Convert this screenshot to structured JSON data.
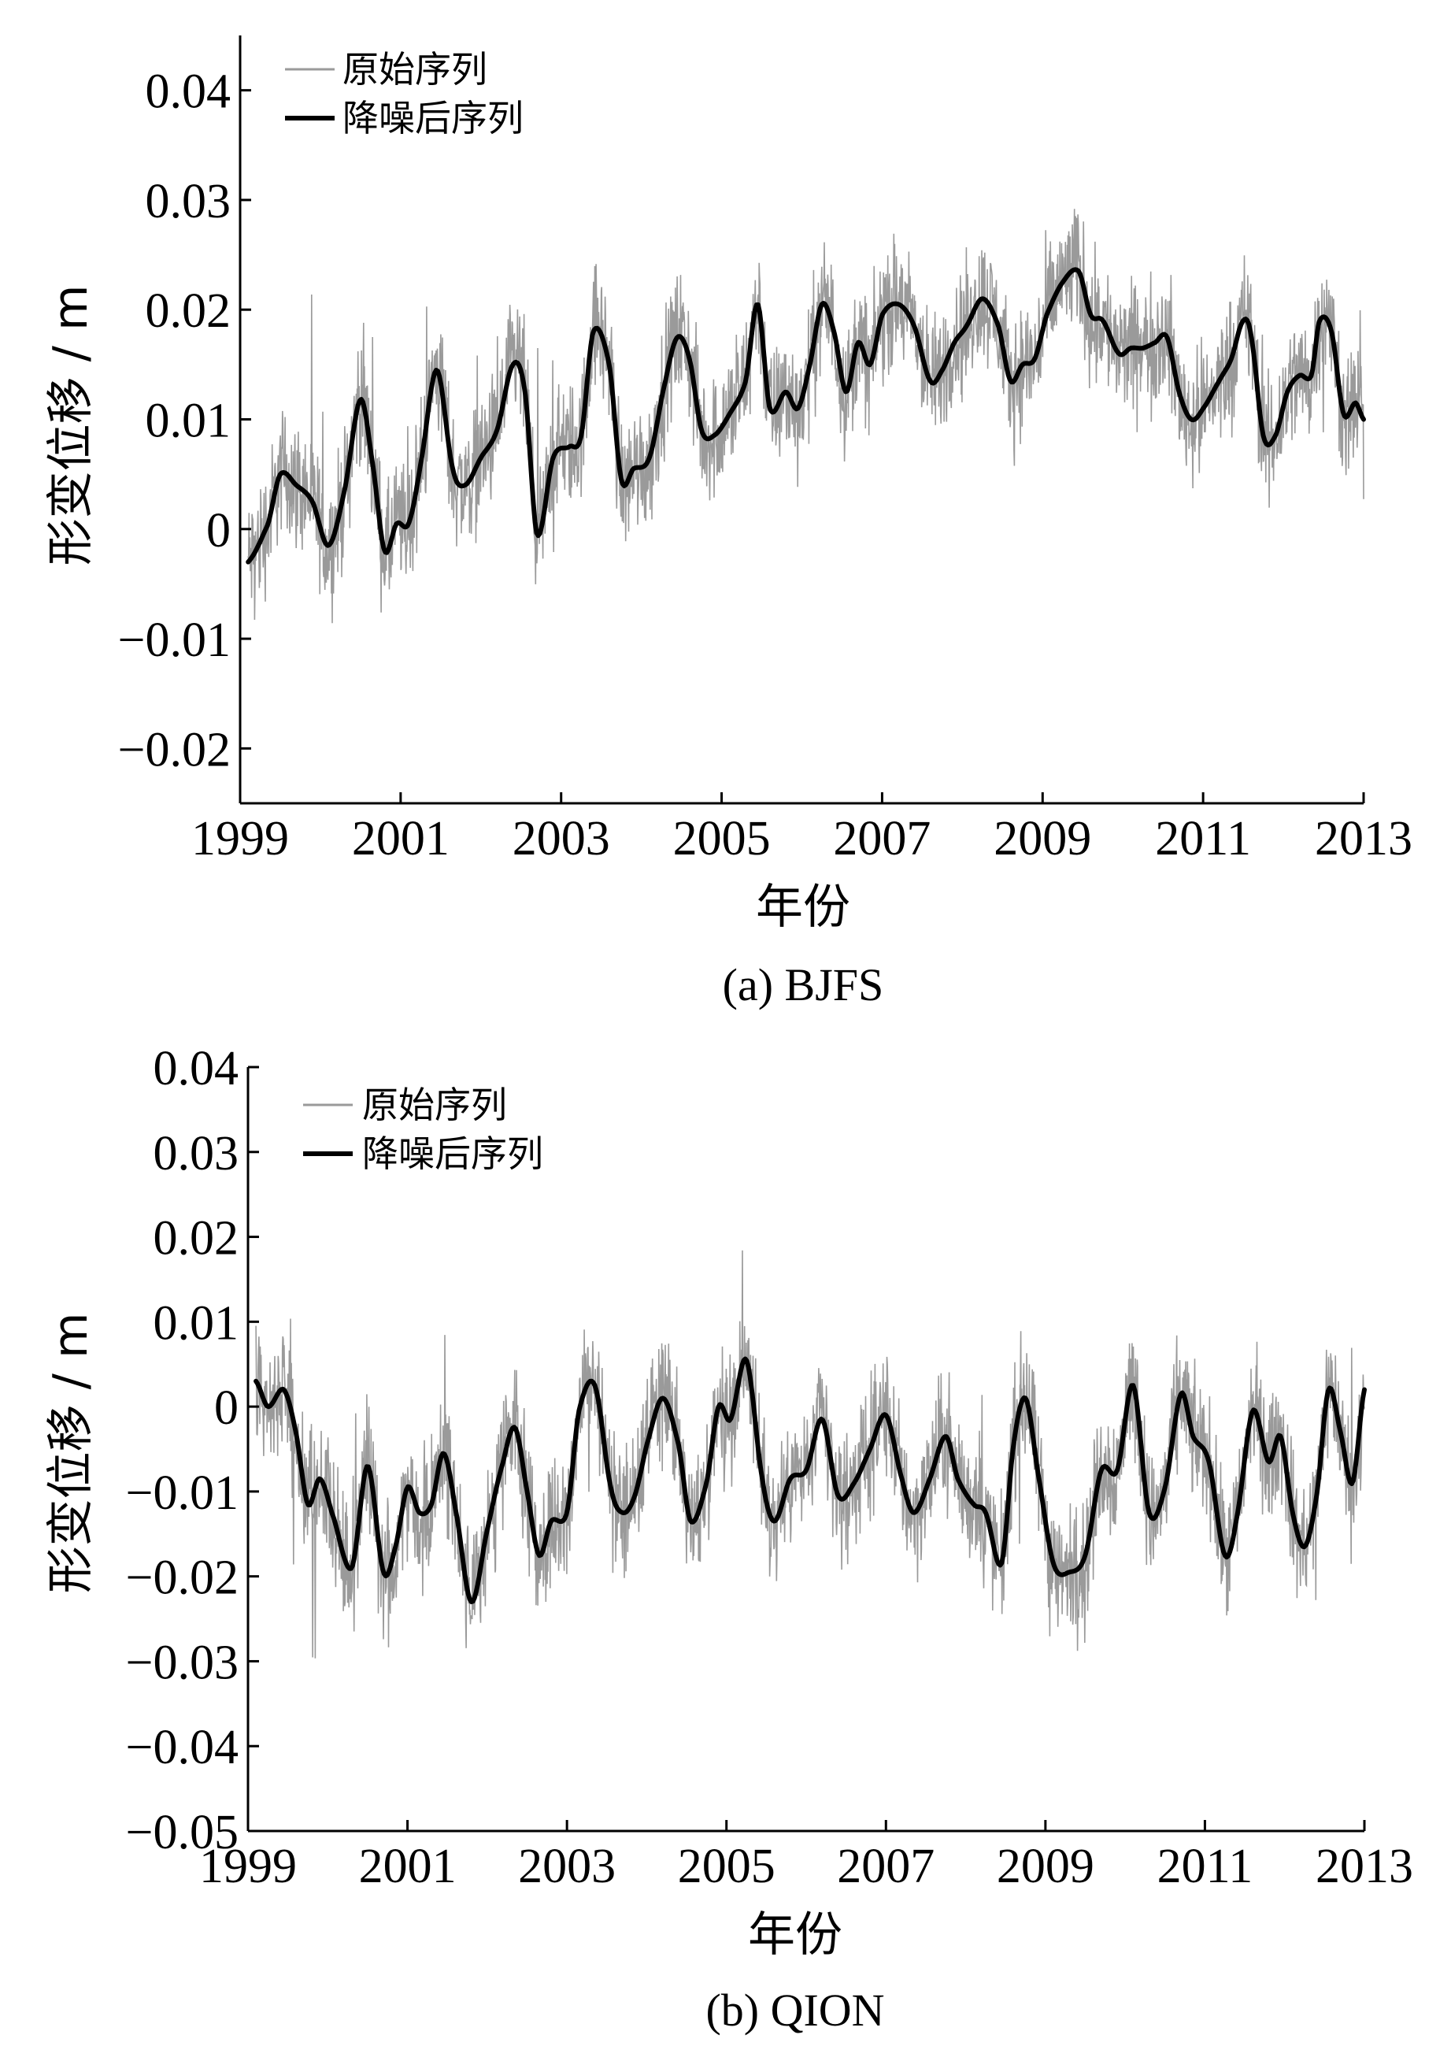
{
  "chart_data": [
    {
      "type": "line",
      "caption": "(a) BJFS",
      "xlabel": "年份",
      "ylabel": "形变位移 / m",
      "xlim": [
        1999,
        2013
      ],
      "ylim": [
        -0.025,
        0.045
      ],
      "xticks": [
        1999,
        2001,
        2003,
        2005,
        2007,
        2009,
        2011,
        2013
      ],
      "xtick_labels": [
        "1999",
        "2001",
        "2003",
        "2005",
        "2007",
        "2009",
        "2011",
        "2013"
      ],
      "yticks": [
        -0.02,
        -0.01,
        0,
        0.01,
        0.02,
        0.03,
        0.04
      ],
      "ytick_labels": [
        "−0.02",
        "−0.01",
        "0",
        "0.01",
        "0.02",
        "0.03",
        "0.04"
      ],
      "legend_position": "top-left",
      "grid": false,
      "noise_amplitude": 0.0085,
      "series": [
        {
          "name": "原始序列",
          "style": "thin-gray",
          "color": "#9a9a9a"
        },
        {
          "name": "降噪后序列",
          "style": "thick-black",
          "color": "#000000",
          "x": [
            1999.1,
            1999.35,
            1999.5,
            1999.7,
            1999.9,
            2000.1,
            2000.3,
            2000.5,
            2000.65,
            2000.8,
            2000.95,
            2001.1,
            2001.25,
            2001.45,
            2001.65,
            2001.8,
            2002.0,
            2002.2,
            2002.4,
            2002.55,
            2002.7,
            2002.9,
            2003.1,
            2003.25,
            2003.4,
            2003.6,
            2003.75,
            2003.9,
            2004.1,
            2004.3,
            2004.45,
            2004.6,
            2004.75,
            2004.9,
            2005.1,
            2005.3,
            2005.45,
            2005.6,
            2005.8,
            2005.95,
            2006.1,
            2006.25,
            2006.4,
            2006.55,
            2006.7,
            2006.85,
            2007.0,
            2007.2,
            2007.4,
            2007.6,
            2007.75,
            2007.9,
            2008.05,
            2008.25,
            2008.45,
            2008.6,
            2008.75,
            2008.9,
            2009.05,
            2009.25,
            2009.45,
            2009.6,
            2009.75,
            2009.95,
            2010.1,
            2010.25,
            2010.4,
            2010.55,
            2010.7,
            2010.85,
            2011.0,
            2011.2,
            2011.35,
            2011.5,
            2011.6,
            2011.75,
            2011.9,
            2012.05,
            2012.2,
            2012.35,
            2012.45,
            2012.6,
            2012.75,
            2012.9,
            2013.0
          ],
          "y": [
            -0.003,
            0.0005,
            0.005,
            0.004,
            0.0025,
            -0.0015,
            0.0035,
            0.0118,
            0.006,
            -0.002,
            0.0005,
            0.0005,
            0.006,
            0.0145,
            0.0055,
            0.004,
            0.0065,
            0.009,
            0.015,
            0.0125,
            -0.0005,
            0.0065,
            0.0075,
            0.0085,
            0.018,
            0.015,
            0.0045,
            0.0055,
            0.0065,
            0.0135,
            0.0175,
            0.0155,
            0.009,
            0.0085,
            0.0105,
            0.0135,
            0.0205,
            0.011,
            0.0125,
            0.011,
            0.015,
            0.0205,
            0.018,
            0.0125,
            0.017,
            0.015,
            0.0195,
            0.0205,
            0.0185,
            0.0135,
            0.0145,
            0.017,
            0.0185,
            0.021,
            0.0185,
            0.0135,
            0.015,
            0.0155,
            0.0195,
            0.0225,
            0.0235,
            0.0195,
            0.019,
            0.016,
            0.0165,
            0.0165,
            0.017,
            0.0175,
            0.0125,
            0.01,
            0.011,
            0.0135,
            0.0155,
            0.019,
            0.0175,
            0.0085,
            0.0085,
            0.0125,
            0.014,
            0.014,
            0.019,
            0.018,
            0.0105,
            0.0115,
            0.01
          ]
        }
      ]
    },
    {
      "type": "line",
      "caption": "(b) QION",
      "xlabel": "年份",
      "ylabel": "形变位移 / m",
      "xlim": [
        1999,
        2013
      ],
      "ylim": [
        -0.05,
        0.04
      ],
      "xticks": [
        1999,
        2001,
        2003,
        2005,
        2007,
        2009,
        2011,
        2013
      ],
      "xtick_labels": [
        "1999",
        "2001",
        "2003",
        "2005",
        "2007",
        "2009",
        "2011",
        "2013"
      ],
      "yticks": [
        -0.05,
        -0.04,
        -0.03,
        -0.02,
        -0.01,
        0,
        0.01,
        0.02,
        0.03,
        0.04
      ],
      "ytick_labels": [
        "−0.05",
        "−0.04",
        "−0.03",
        "−0.02",
        "−0.01",
        "0",
        "0.01",
        "0.02",
        "0.03",
        "0.04"
      ],
      "legend_position": "top-left",
      "grid": false,
      "noise_amplitude": 0.011,
      "series": [
        {
          "name": "原始序列",
          "style": "thin-gray",
          "color": "#9a9a9a"
        },
        {
          "name": "降噪后序列",
          "style": "thick-black",
          "color": "#000000",
          "x": [
            1999.1,
            1999.25,
            1999.45,
            1999.6,
            1999.75,
            1999.9,
            2000.05,
            2000.3,
            2000.5,
            2000.7,
            2000.85,
            2001.0,
            2001.15,
            2001.3,
            2001.45,
            2001.6,
            2001.8,
            2002.0,
            2002.2,
            2002.35,
            2002.5,
            2002.65,
            2002.8,
            2003.0,
            2003.15,
            2003.35,
            2003.55,
            2003.7,
            2003.85,
            2004.0,
            2004.2,
            2004.4,
            2004.55,
            2004.75,
            2004.9,
            2005.05,
            2005.25,
            2005.45,
            2005.6,
            2005.8,
            2006.0,
            2006.2,
            2006.4,
            2006.6,
            2006.8,
            2007.0,
            2007.2,
            2007.35,
            2007.55,
            2007.75,
            2007.9,
            2008.1,
            2008.25,
            2008.45,
            2008.6,
            2008.75,
            2008.9,
            2009.1,
            2009.3,
            2009.5,
            2009.7,
            2009.9,
            2010.1,
            2010.3,
            2010.5,
            2010.7,
            2010.85,
            2011.05,
            2011.25,
            2011.4,
            2011.6,
            2011.8,
            2011.95,
            2012.1,
            2012.25,
            2012.4,
            2012.55,
            2012.7,
            2012.85,
            2013.0
          ],
          "y": [
            0.003,
            0.0,
            0.002,
            -0.003,
            -0.0115,
            -0.0085,
            -0.0125,
            -0.019,
            -0.007,
            -0.0195,
            -0.0165,
            -0.0095,
            -0.0125,
            -0.0115,
            -0.0055,
            -0.012,
            -0.023,
            -0.0145,
            -0.0065,
            -0.0025,
            -0.01,
            -0.0175,
            -0.0135,
            -0.0125,
            -0.0005,
            0.0025,
            -0.0095,
            -0.0125,
            -0.0105,
            -0.0045,
            0.001,
            -0.0045,
            -0.0135,
            -0.009,
            0.0,
            -0.0015,
            0.0055,
            -0.0085,
            -0.0135,
            -0.0085,
            -0.0075,
            -0.0015,
            -0.0105,
            -0.009,
            -0.005,
            -0.001,
            -0.0085,
            -0.0125,
            -0.0085,
            -0.0035,
            -0.0085,
            -0.0115,
            -0.0125,
            -0.0185,
            -0.0045,
            0.001,
            -0.0075,
            -0.0185,
            -0.0195,
            -0.0175,
            -0.0075,
            -0.0075,
            0.0025,
            -0.0125,
            -0.0095,
            0.0015,
            -0.0035,
            -0.0065,
            -0.0175,
            -0.013,
            -0.0005,
            -0.0065,
            -0.0035,
            -0.0125,
            -0.0165,
            -0.0105,
            0.002,
            -0.003,
            -0.009,
            0.002
          ]
        }
      ]
    }
  ]
}
